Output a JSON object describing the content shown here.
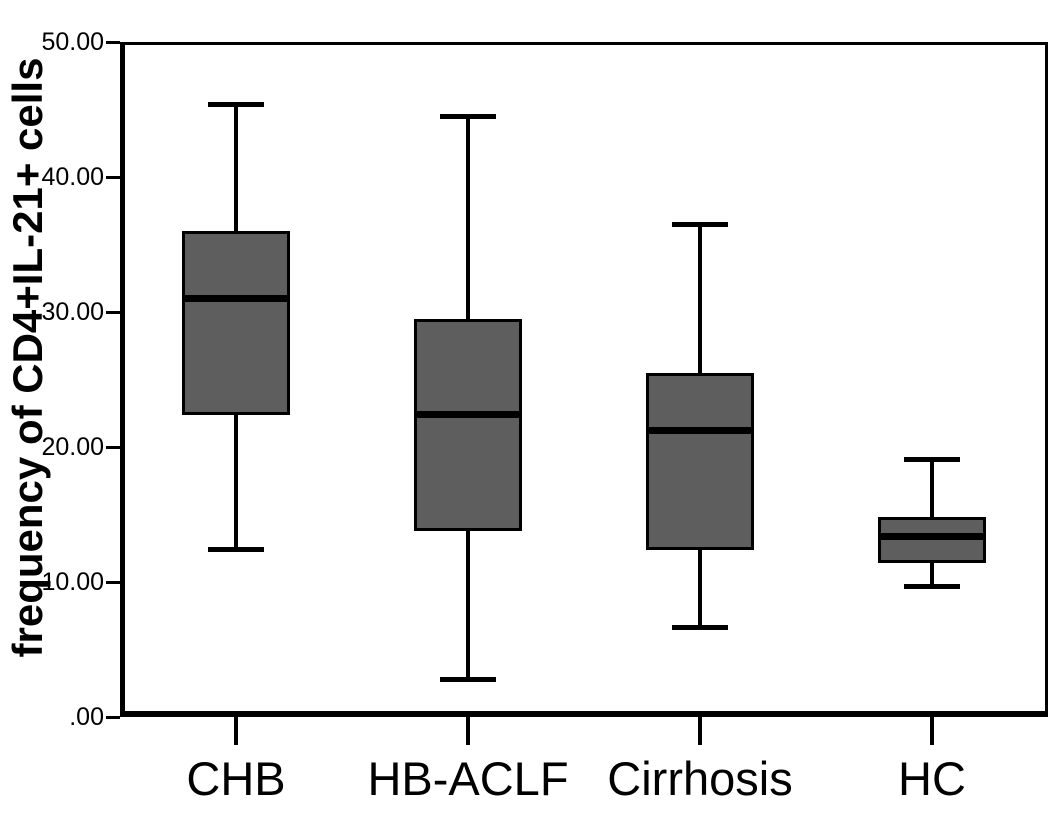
{
  "chart_data": {
    "type": "boxplot",
    "title": "",
    "xlabel": "",
    "ylabel": "frequency of CD4+IL-21+ cells",
    "ylim": [
      0,
      50
    ],
    "ytick_values": [
      0,
      10,
      20,
      30,
      40,
      50
    ],
    "ytick_labels": [
      ".00",
      "10.00",
      "20.00",
      "30.00",
      "40.00",
      "50.00"
    ],
    "categories": [
      "CHB",
      "HB-ACLF",
      "Cirrhosis",
      "HC"
    ],
    "series": [
      {
        "category": "CHB",
        "min": 12.4,
        "q1": 22.4,
        "median": 31.0,
        "q3": 36.0,
        "max": 45.4
      },
      {
        "category": "HB-ACLF",
        "min": 2.8,
        "q1": 13.8,
        "median": 22.4,
        "q3": 29.5,
        "max": 44.5
      },
      {
        "category": "Cirrhosis",
        "min": 6.6,
        "q1": 12.4,
        "median": 21.2,
        "q3": 25.5,
        "max": 36.5
      },
      {
        "category": "HC",
        "min": 9.7,
        "q1": 11.4,
        "median": 13.4,
        "q3": 14.8,
        "max": 19.1
      }
    ],
    "grid": false,
    "legend": false,
    "colors": {
      "box_fill": "#5e5e5e",
      "box_border": "#000000",
      "median": "#000000",
      "axis": "#000000",
      "background": "#ffffff",
      "text": "#000000"
    }
  }
}
